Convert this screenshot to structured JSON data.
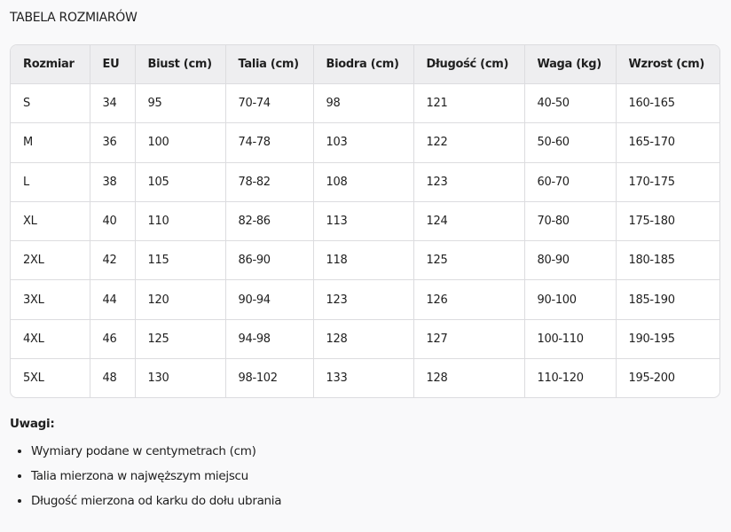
{
  "title": "TABELA ROZMIARÓW",
  "table": {
    "headers": [
      "Rozmiar",
      "EU",
      "Biust (cm)",
      "Talia (cm)",
      "Biodra (cm)",
      "Długość (cm)",
      "Waga (kg)",
      "Wzrost (cm)"
    ],
    "rows": [
      [
        "S",
        "34",
        "95",
        "70-74",
        "98",
        "121",
        "40-50",
        "160-165"
      ],
      [
        "M",
        "36",
        "100",
        "74-78",
        "103",
        "122",
        "50-60",
        "165-170"
      ],
      [
        "L",
        "38",
        "105",
        "78-82",
        "108",
        "123",
        "60-70",
        "170-175"
      ],
      [
        "XL",
        "40",
        "110",
        "82-86",
        "113",
        "124",
        "70-80",
        "175-180"
      ],
      [
        "2XL",
        "42",
        "115",
        "86-90",
        "118",
        "125",
        "80-90",
        "180-185"
      ],
      [
        "3XL",
        "44",
        "120",
        "90-94",
        "123",
        "126",
        "90-100",
        "185-190"
      ],
      [
        "4XL",
        "46",
        "125",
        "94-98",
        "128",
        "127",
        "100-110",
        "190-195"
      ],
      [
        "5XL",
        "48",
        "130",
        "98-102",
        "133",
        "128",
        "110-120",
        "195-200"
      ]
    ]
  },
  "notes": {
    "heading": "Uwagi:",
    "items": [
      "Wymiary podane w centymetrach (cm)",
      "Talia mierzona w najwęższym miejscu",
      "Długość mierzona od karku do dołu ubrania"
    ]
  }
}
